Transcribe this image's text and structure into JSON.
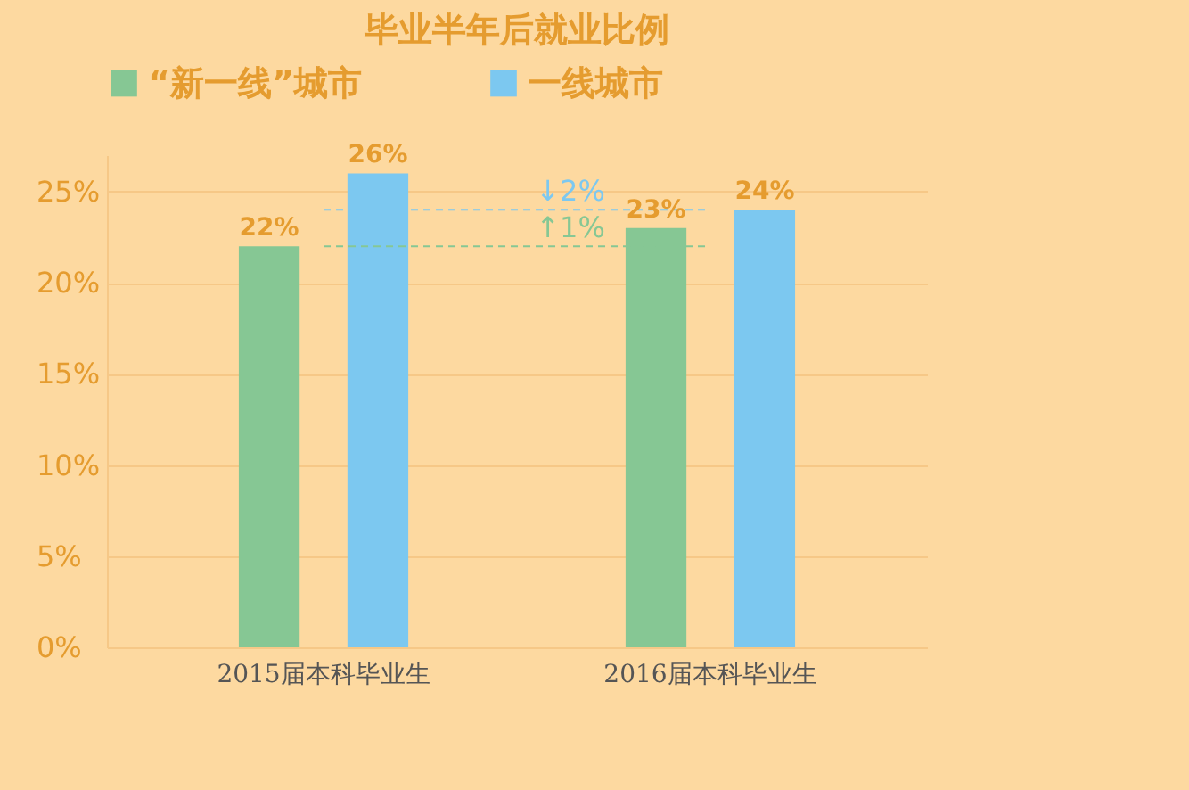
{
  "chart_data": {
    "type": "bar",
    "title": "毕业半年后就业比例",
    "categories": [
      "2015届本科毕业生",
      "2016届本科毕业生"
    ],
    "series": [
      {
        "name": "“新一线”城市",
        "color": "#86c794",
        "values": [
          22,
          23
        ],
        "value_labels": [
          "22%",
          "23%"
        ]
      },
      {
        "name": "一线城市",
        "color": "#7cc8f0",
        "values": [
          26,
          24
        ],
        "value_labels": [
          "26%",
          "24%"
        ]
      }
    ],
    "ylim": [
      0,
      27
    ],
    "yticks": [
      {
        "value": 0,
        "label": "0%"
      },
      {
        "value": 5,
        "label": "5%"
      },
      {
        "value": 10,
        "label": "10%"
      },
      {
        "value": 15,
        "label": "15%"
      },
      {
        "value": 20,
        "label": "20%"
      },
      {
        "value": 25,
        "label": "25%"
      }
    ],
    "ref_lines": [
      {
        "axis": "y",
        "value": 24,
        "label": "↓2%",
        "color": "#7cc8f0",
        "line_style": "dashed"
      },
      {
        "axis": "y",
        "value": 22,
        "label": "↑1%",
        "color": "#86c794",
        "line_style": "dashed"
      }
    ],
    "grid": "y",
    "legend": "top"
  }
}
